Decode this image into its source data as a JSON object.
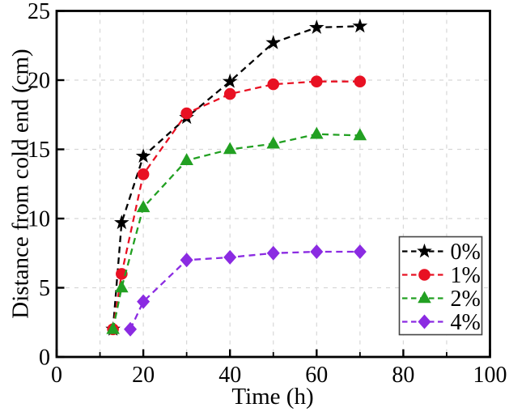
{
  "chart_data": {
    "type": "line",
    "xlabel": "Time (h)",
    "ylabel": "Distance from cold end (cm)",
    "xlim": [
      0,
      100
    ],
    "ylim": [
      0,
      25
    ],
    "x_major_ticks": [
      0,
      20,
      40,
      60,
      80,
      100
    ],
    "x_minor_ticks": [
      10,
      30,
      50,
      70,
      90
    ],
    "y_major_ticks": [
      0,
      5,
      10,
      15,
      20,
      25
    ],
    "grid": {
      "x_every": 10,
      "y_every": 5,
      "color": "#d7d7d7",
      "style": "dashed"
    },
    "legend": {
      "position": "lower-right",
      "border": true
    },
    "series": [
      {
        "name": "0%",
        "id": "0pct",
        "color": "#000000",
        "marker": "star",
        "line_style": "dashed",
        "x": [
          13,
          15,
          20,
          30,
          40,
          50,
          60,
          70
        ],
        "y": [
          2.0,
          9.7,
          14.5,
          17.3,
          19.9,
          22.7,
          23.8,
          23.9
        ]
      },
      {
        "name": "1%",
        "id": "1pct",
        "color": "#e81123",
        "marker": "circle",
        "line_style": "dashed",
        "x": [
          13,
          15,
          20,
          30,
          40,
          50,
          60,
          70
        ],
        "y": [
          2.0,
          6.0,
          13.2,
          17.6,
          19.0,
          19.7,
          19.9,
          19.9
        ]
      },
      {
        "name": "2%",
        "id": "2pct",
        "color": "#22a022",
        "marker": "triangle",
        "line_style": "dashed",
        "x": [
          13,
          15,
          20,
          30,
          40,
          50,
          60,
          70
        ],
        "y": [
          2.0,
          5.0,
          10.8,
          14.2,
          15.0,
          15.4,
          16.1,
          16.0
        ]
      },
      {
        "name": "4%",
        "id": "4pct",
        "color": "#8b2be2",
        "marker": "diamond",
        "line_style": "dashed",
        "x": [
          17,
          20,
          30,
          40,
          50,
          60,
          70
        ],
        "y": [
          2.0,
          4.0,
          7.0,
          7.2,
          7.5,
          7.6,
          7.6
        ]
      }
    ]
  }
}
